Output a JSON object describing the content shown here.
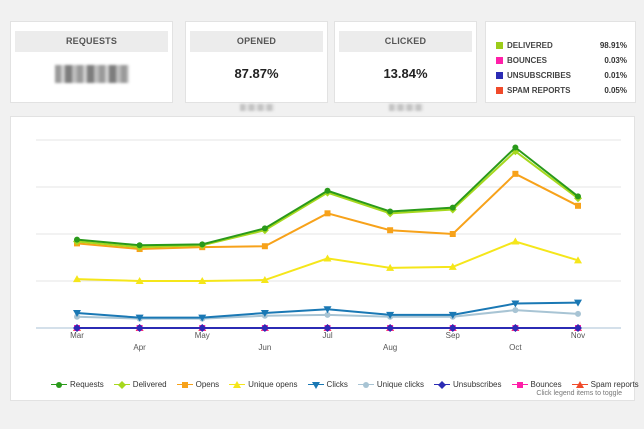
{
  "stats": [
    {
      "title": "REQUESTS",
      "value": "",
      "blurred": true
    },
    {
      "title": "OPENED",
      "value": "87.87%",
      "blurred": false
    },
    {
      "title": "CLICKED",
      "value": "13.84%",
      "blurred": false
    }
  ],
  "status": [
    {
      "label": "DELIVERED",
      "pct": "98.91%",
      "color": "#9ccc1a"
    },
    {
      "label": "BOUNCES",
      "pct": "0.03%",
      "color": "#ff1fa8"
    },
    {
      "label": "UNSUBSCRIBES",
      "pct": "0.01%",
      "color": "#2b2bb4"
    },
    {
      "label": "SPAM REPORTS",
      "pct": "0.05%",
      "color": "#f04a2a"
    }
  ],
  "chart_data": {
    "type": "line",
    "categories": [
      "Mar",
      "Apr",
      "May",
      "Jun",
      "Jul",
      "Aug",
      "Sep",
      "Oct",
      "Nov"
    ],
    "ylim": [
      0,
      100
    ],
    "grid": true,
    "legend_position": "bottom",
    "series": [
      {
        "name": "Requests",
        "color": "#2a9a1a",
        "marker": "circle",
        "values": [
          47,
          44,
          44.5,
          53,
          73,
          62,
          64,
          96,
          70
        ]
      },
      {
        "name": "Delivered",
        "color": "#a6d81e",
        "marker": "diamond",
        "values": [
          46,
          43,
          44,
          52,
          72,
          61,
          63,
          94,
          69
        ]
      },
      {
        "name": "Opens",
        "color": "#f7a21a",
        "marker": "square",
        "values": [
          45,
          42,
          43,
          43.5,
          61,
          52,
          50,
          82,
          65
        ]
      },
      {
        "name": "Unique opens",
        "color": "#f5e61a",
        "marker": "triangle",
        "values": [
          26,
          25,
          25,
          25.5,
          37,
          32,
          32.5,
          46,
          36
        ]
      },
      {
        "name": "Clicks",
        "color": "#1a78b4",
        "marker": "triangle-down",
        "values": [
          8,
          5.5,
          5.5,
          8,
          10,
          7,
          7,
          13,
          13.5
        ]
      },
      {
        "name": "Unique clicks",
        "color": "#a8c4d4",
        "marker": "circle",
        "values": [
          6,
          5,
          5,
          6.5,
          7,
          6,
          6,
          9.5,
          7.5
        ]
      },
      {
        "name": "Unsubscribes",
        "color": "#2b2bb4",
        "marker": "diamond",
        "values": [
          0,
          0,
          0,
          0,
          0,
          0,
          0,
          0,
          0
        ]
      },
      {
        "name": "Bounces",
        "color": "#ff1fa8",
        "marker": "square",
        "values": [
          0,
          0,
          0,
          0,
          0,
          0,
          0,
          0,
          0
        ]
      },
      {
        "name": "Spam reports",
        "color": "#f04a2a",
        "marker": "triangle",
        "values": [
          0,
          0,
          0,
          0,
          0,
          0,
          0,
          0,
          0
        ]
      }
    ]
  },
  "legend_hint": "Click legend items to toggle"
}
